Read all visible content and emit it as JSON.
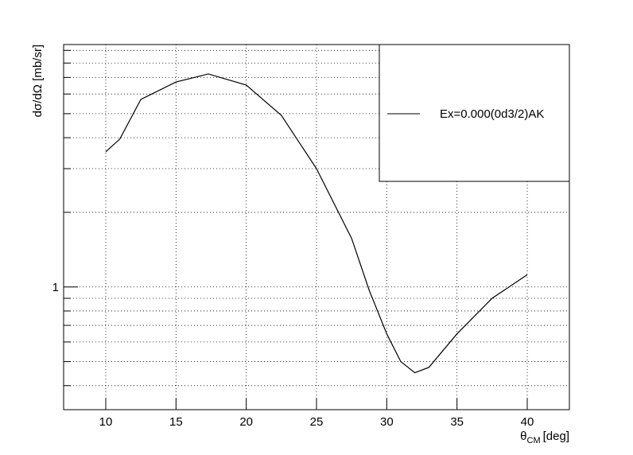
{
  "chart_data": {
    "type": "line",
    "log_y": true,
    "grid": true,
    "y_label": "dσ/dΩ [mb/sr]",
    "x_label": {
      "symbol": "θ",
      "subscript": "CM",
      "unit": "[deg]"
    },
    "xlim": [
      7,
      43
    ],
    "xticks": [
      10,
      15,
      20,
      25,
      30,
      35,
      40
    ],
    "ylim": [
      0.32,
      9.5
    ],
    "yticks": [
      1
    ],
    "yminor_ticks": [
      0.4,
      0.5,
      0.6,
      0.7,
      0.8,
      0.9,
      2,
      3,
      4,
      5,
      6,
      7,
      8,
      9
    ],
    "legend": "top-right",
    "x": [
      10,
      11,
      12.5,
      15,
      17.3,
      20,
      22.5,
      25,
      27.5,
      28.75,
      30,
      31,
      32,
      33,
      35,
      37.5,
      40
    ],
    "series": [
      {
        "name": "Ex=0.000(0d3/2)AK",
        "color": "#000000",
        "values": [
          3.51,
          3.95,
          5.71,
          6.71,
          7.23,
          6.52,
          4.92,
          3.0,
          1.57,
          0.97,
          0.647,
          0.5,
          0.451,
          0.474,
          0.647,
          0.9,
          1.12
        ]
      }
    ]
  }
}
